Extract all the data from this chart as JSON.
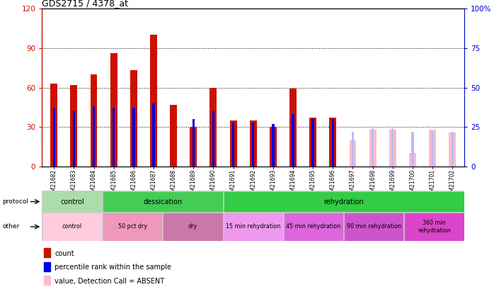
{
  "title": "GDS2715 / 4378_at",
  "samples": [
    "GSM21682",
    "GSM21683",
    "GSM21684",
    "GSM21685",
    "GSM21686",
    "GSM21687",
    "GSM21688",
    "GSM21689",
    "GSM21690",
    "GSM21691",
    "GSM21692",
    "GSM21693",
    "GSM21694",
    "GSM21695",
    "GSM21696",
    "GSM21697",
    "GSM21698",
    "GSM21699",
    "GSM21700",
    "GSM21701",
    "GSM21702"
  ],
  "count_values": [
    63,
    62,
    70,
    86,
    73,
    100,
    47,
    30,
    60,
    35,
    35,
    30,
    59,
    37,
    37,
    0,
    0,
    0,
    0,
    0,
    0
  ],
  "count_absent": [
    0,
    0,
    0,
    0,
    0,
    0,
    0,
    0,
    0,
    0,
    0,
    0,
    0,
    0,
    0,
    20,
    28,
    28,
    10,
    28,
    26
  ],
  "rank_values": [
    37,
    35,
    38,
    37,
    37,
    40,
    0,
    30,
    35,
    28,
    28,
    27,
    33,
    30,
    30,
    0,
    0,
    0,
    0,
    0,
    0
  ],
  "rank_absent": [
    0,
    0,
    0,
    0,
    0,
    0,
    0,
    0,
    0,
    0,
    0,
    0,
    0,
    0,
    0,
    22,
    24,
    24,
    22,
    22,
    22
  ],
  "ylim_left": [
    0,
    120
  ],
  "ylim_right": [
    0,
    100
  ],
  "yticks_left": [
    0,
    30,
    60,
    90,
    120
  ],
  "yticks_right": [
    0,
    25,
    50,
    75,
    100
  ],
  "protocol_groups": [
    {
      "label": "control",
      "start": 0,
      "end": 3,
      "color": "#aaddaa"
    },
    {
      "label": "dessication",
      "start": 3,
      "end": 9,
      "color": "#44cc55"
    },
    {
      "label": "rehydration",
      "start": 9,
      "end": 21,
      "color": "#33cc44"
    }
  ],
  "other_groups": [
    {
      "label": "control",
      "start": 0,
      "end": 3,
      "color": "#ffccdd"
    },
    {
      "label": "50 pct dry",
      "start": 3,
      "end": 6,
      "color": "#ee99bb"
    },
    {
      "label": "dry",
      "start": 6,
      "end": 9,
      "color": "#cc77aa"
    },
    {
      "label": "15 min rehydration",
      "start": 9,
      "end": 12,
      "color": "#ee99ee"
    },
    {
      "label": "45 min rehydration",
      "start": 12,
      "end": 15,
      "color": "#dd66dd"
    },
    {
      "label": "90 min rehydration",
      "start": 15,
      "end": 18,
      "color": "#cc55cc"
    },
    {
      "label": "360 min\nrehydration",
      "start": 18,
      "end": 21,
      "color": "#dd44cc"
    }
  ],
  "count_color": "#cc1100",
  "rank_color": "#0000dd",
  "count_absent_color": "#ffbbcc",
  "rank_absent_color": "#bbbbff",
  "left_axis_color": "#cc1100",
  "right_axis_color": "#0000cc"
}
